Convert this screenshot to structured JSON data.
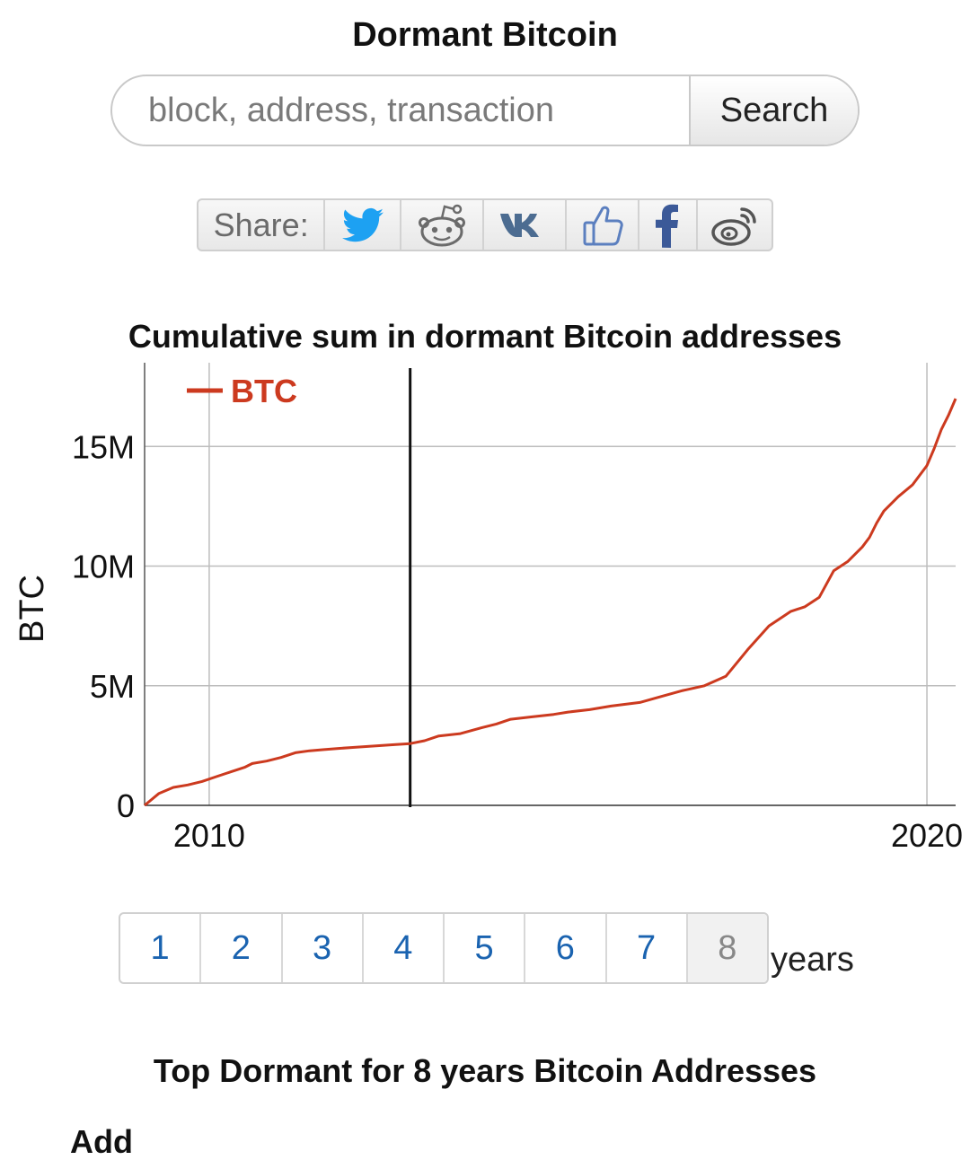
{
  "page": {
    "title": "Dormant Bitcoin"
  },
  "search": {
    "placeholder": "block, address, transaction",
    "value": "",
    "button_label": "Search"
  },
  "share": {
    "label": "Share:",
    "buttons": [
      {
        "name": "twitter",
        "icon": "twitter-bird-icon",
        "color": "#1da1f2"
      },
      {
        "name": "reddit",
        "icon": "reddit-alien-icon",
        "color": "#6b6b6b"
      },
      {
        "name": "vk",
        "icon": "vk-logo-icon",
        "color": "#4c6c91"
      },
      {
        "name": "like",
        "icon": "thumbs-up-icon",
        "color": "#5b7fbf"
      },
      {
        "name": "facebook",
        "icon": "facebook-f-icon",
        "color": "#3b5998"
      },
      {
        "name": "weibo",
        "icon": "weibo-logo-icon",
        "color": "#555555"
      }
    ]
  },
  "chart_title": "Cumulative sum in dormant Bitcoin addresses",
  "chart_data": {
    "type": "line",
    "title": "Cumulative sum in dormant Bitcoin addresses",
    "xlabel": "",
    "ylabel": "BTC",
    "x_ticks": [
      "2010",
      "2020"
    ],
    "y_ticks": [
      "0",
      "5M",
      "10M",
      "15M"
    ],
    "xlim": [
      2009.1,
      2020.4
    ],
    "ylim": [
      0,
      18500000
    ],
    "grid": true,
    "legend": "top-left",
    "marker_line_x": 2012.8,
    "series": [
      {
        "name": "BTC",
        "color": "#cc3a1f",
        "x": [
          2009.1,
          2009.3,
          2009.5,
          2009.7,
          2009.9,
          2010.1,
          2010.3,
          2010.5,
          2010.6,
          2010.8,
          2011.0,
          2011.2,
          2011.4,
          2011.6,
          2011.8,
          2012.0,
          2012.3,
          2012.6,
          2012.8,
          2013.0,
          2013.2,
          2013.5,
          2013.8,
          2014.0,
          2014.2,
          2014.5,
          2014.8,
          2015.0,
          2015.3,
          2015.6,
          2016.0,
          2016.3,
          2016.6,
          2016.9,
          2017.2,
          2017.5,
          2017.8,
          2018.0,
          2018.1,
          2018.3,
          2018.5,
          2018.7,
          2018.9,
          2019.0,
          2019.1,
          2019.2,
          2019.3,
          2019.4,
          2019.6,
          2019.8,
          2020.0,
          2020.1,
          2020.2,
          2020.3,
          2020.4
        ],
        "y": [
          0,
          500000,
          750000,
          850000,
          1000000,
          1200000,
          1400000,
          1600000,
          1750000,
          1850000,
          2000000,
          2200000,
          2280000,
          2330000,
          2380000,
          2420000,
          2480000,
          2540000,
          2580000,
          2700000,
          2900000,
          3000000,
          3250000,
          3400000,
          3600000,
          3700000,
          3800000,
          3900000,
          4000000,
          4150000,
          4300000,
          4550000,
          4800000,
          5000000,
          5400000,
          6500000,
          7500000,
          7900000,
          8100000,
          8300000,
          8700000,
          9800000,
          10200000,
          10500000,
          10800000,
          11200000,
          11800000,
          12300000,
          12900000,
          13400000,
          14200000,
          14900000,
          15700000,
          16300000,
          17000000
        ]
      }
    ]
  },
  "pagination": {
    "items": [
      "1",
      "2",
      "3",
      "4",
      "5",
      "6",
      "7",
      "8"
    ],
    "active": "8",
    "suffix": "years"
  },
  "section_title": "Top Dormant for 8 years Bitcoin Addresses",
  "next_heading": "Add"
}
